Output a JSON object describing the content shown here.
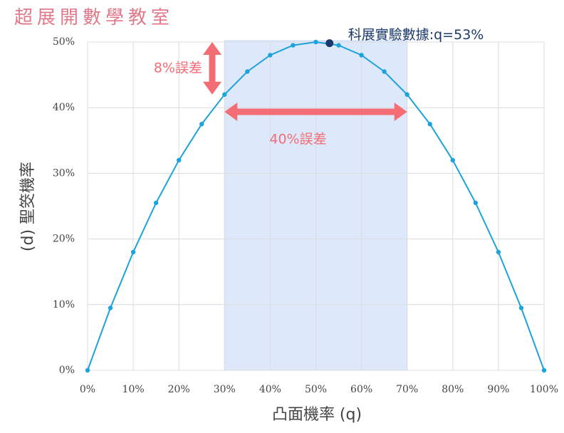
{
  "chart_data": {
    "type": "line",
    "title": "超展開數學教室",
    "xlabel": "凸面機率 (q)",
    "ylabel": "(d) 聖筊機率",
    "x": [
      0,
      5,
      10,
      15,
      20,
      25,
      30,
      35,
      40,
      45,
      50,
      55,
      60,
      65,
      70,
      75,
      80,
      85,
      90,
      95,
      100
    ],
    "series": [
      {
        "name": "聖筊機率",
        "color": "#1ca3dc",
        "values": [
          0,
          9.5,
          18,
          25.5,
          32,
          37.5,
          42,
          45.5,
          48,
          49.5,
          50,
          49.5,
          48,
          45.5,
          42,
          37.5,
          32,
          25.5,
          18,
          9.5,
          0
        ]
      }
    ],
    "xlim": [
      0,
      100
    ],
    "ylim": [
      0,
      50
    ],
    "xticks": [
      {
        "value": 0,
        "label": "0%"
      },
      {
        "value": 10,
        "label": "10%"
      },
      {
        "value": 20,
        "label": "20%"
      },
      {
        "value": 30,
        "label": "30%"
      },
      {
        "value": 40,
        "label": "40%"
      },
      {
        "value": 50,
        "label": "50%"
      },
      {
        "value": 60,
        "label": "60%"
      },
      {
        "value": 70,
        "label": "70%"
      },
      {
        "value": 80,
        "label": "80%"
      },
      {
        "value": 90,
        "label": "90%"
      },
      {
        "value": 100,
        "label": "100%"
      }
    ],
    "yticks": [
      {
        "value": 0,
        "label": "0%"
      },
      {
        "value": 10,
        "label": "10%"
      },
      {
        "value": 20,
        "label": "20%"
      },
      {
        "value": 30,
        "label": "30%"
      },
      {
        "value": 40,
        "label": "40%"
      },
      {
        "value": 50,
        "label": "50%"
      }
    ],
    "grid": true,
    "highlight": {
      "x": [
        30,
        70
      ],
      "color": "#dde9fb"
    },
    "point": {
      "text": "科展實驗數據:q=53%",
      "x": 53,
      "y": 49.82,
      "color": "#1b3a6b"
    },
    "annotations": [
      {
        "text": "8%誤差",
        "y": [
          42,
          50
        ],
        "color": "#f46d75"
      },
      {
        "text": "40%誤差",
        "x": [
          30,
          70
        ],
        "color": "#f46d75"
      }
    ]
  }
}
